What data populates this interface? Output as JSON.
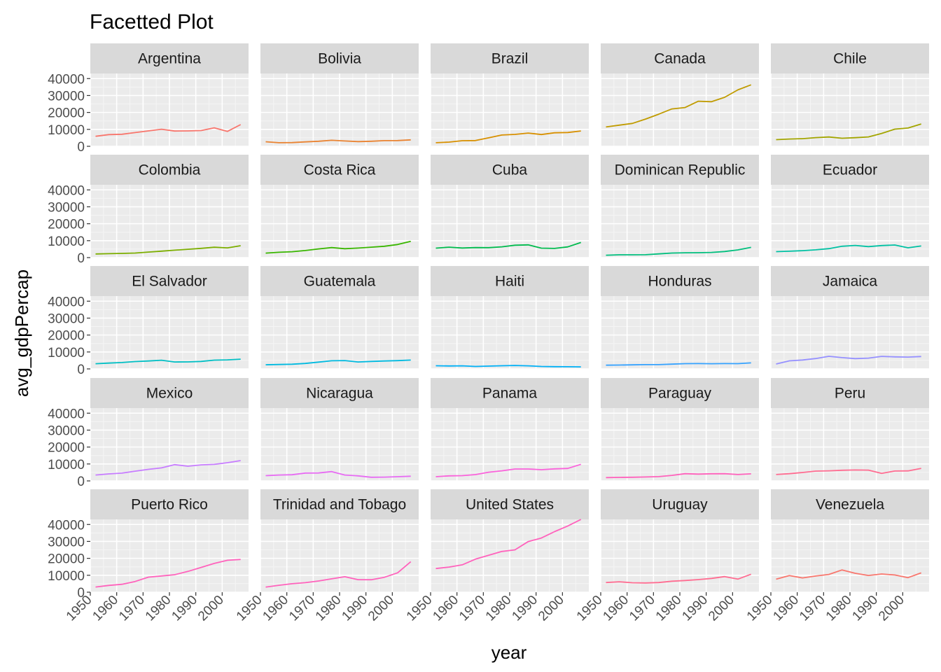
{
  "chart_data": {
    "type": "line",
    "title": "Facetted Plot",
    "xlabel": "year",
    "ylabel": "avg_gdpPercap",
    "xlim": [
      1950,
      2010
    ],
    "ylim": [
      0,
      43000
    ],
    "x_ticks": [
      1950,
      1960,
      1970,
      1980,
      1990,
      2000
    ],
    "y_ticks": [
      0,
      10000,
      20000,
      30000,
      40000
    ],
    "grid": true,
    "x": [
      1952,
      1957,
      1962,
      1967,
      1972,
      1977,
      1982,
      1987,
      1992,
      1997,
      2002,
      2007
    ],
    "series": [
      {
        "name": "Argentina",
        "color": "#F8766D",
        "values": [
          5900,
          6900,
          7100,
          8100,
          9100,
          10100,
          9000,
          9100,
          9300,
          10900,
          8800,
          12800
        ]
      },
      {
        "name": "Bolivia",
        "color": "#EA8331",
        "values": [
          2700,
          2100,
          2200,
          2600,
          2980,
          3550,
          3160,
          2750,
          2960,
          3330,
          3410,
          3820
        ]
      },
      {
        "name": "Brazil",
        "color": "#D89000",
        "values": [
          2100,
          2500,
          3300,
          3400,
          4990,
          6660,
          7030,
          7810,
          6950,
          7960,
          8130,
          9070
        ]
      },
      {
        "name": "Canada",
        "color": "#C09B00",
        "values": [
          11400,
          12500,
          13500,
          16100,
          18970,
          22090,
          22900,
          26630,
          26340,
          28950,
          33330,
          36320
        ]
      },
      {
        "name": "Chile",
        "color": "#A3A500",
        "values": [
          3940,
          4320,
          4520,
          5110,
          5490,
          4760,
          5100,
          5550,
          7600,
          10120,
          10780,
          13170
        ]
      },
      {
        "name": "Colombia",
        "color": "#7CAE00",
        "values": [
          2140,
          2320,
          2490,
          2680,
          3260,
          3820,
          4400,
          4900,
          5440,
          6120,
          5760,
          7010
        ]
      },
      {
        "name": "Costa Rica",
        "color": "#39B600",
        "values": [
          2630,
          3140,
          3460,
          4160,
          5120,
          5930,
          5260,
          5630,
          6160,
          6680,
          7720,
          9650
        ]
      },
      {
        "name": "Cuba",
        "color": "#00BB4E",
        "values": [
          5590,
          6180,
          5680,
          5910,
          5880,
          6380,
          7320,
          7530,
          5590,
          5430,
          6340,
          8950
        ]
      },
      {
        "name": "Dominican Republic",
        "color": "#00BF7D",
        "values": [
          1400,
          1660,
          1650,
          1710,
          2190,
          2680,
          2860,
          2880,
          3040,
          3610,
          4560,
          6030
        ]
      },
      {
        "name": "Ecuador",
        "color": "#00C1A3",
        "values": [
          3520,
          3780,
          4090,
          4580,
          5280,
          6680,
          7210,
          6480,
          7100,
          7430,
          5770,
          6870
        ]
      },
      {
        "name": "El Salvador",
        "color": "#00BFC4",
        "values": [
          3050,
          3420,
          3780,
          4360,
          4690,
          5140,
          4100,
          4140,
          4440,
          5150,
          5350,
          5730
        ]
      },
      {
        "name": "Guatemala",
        "color": "#00BAE0",
        "values": [
          2430,
          2620,
          2750,
          3240,
          4030,
          4800,
          4900,
          4090,
          4440,
          4690,
          4860,
          5190
        ]
      },
      {
        "name": "Haiti",
        "color": "#00B0F6",
        "values": [
          1840,
          1730,
          1800,
          1460,
          1650,
          1870,
          2010,
          1820,
          1460,
          1340,
          1270,
          1200
        ]
      },
      {
        "name": "Honduras",
        "color": "#35A2FF",
        "values": [
          2190,
          2290,
          2380,
          2540,
          2530,
          2820,
          3120,
          3160,
          3080,
          3160,
          3100,
          3550
        ]
      },
      {
        "name": "Jamaica",
        "color": "#9590FF",
        "values": [
          2900,
          4750,
          5250,
          6120,
          7430,
          6650,
          6070,
          6350,
          7400,
          7120,
          6990,
          7320
        ]
      },
      {
        "name": "Mexico",
        "color": "#C77CFF",
        "values": [
          3480,
          4130,
          4580,
          5750,
          6810,
          7670,
          9610,
          8690,
          9470,
          9770,
          10740,
          11980
        ]
      },
      {
        "name": "Nicaragua",
        "color": "#E76BF3",
        "values": [
          3110,
          3460,
          3630,
          4640,
          4690,
          5490,
          3470,
          2960,
          2170,
          2250,
          2470,
          2750
        ]
      },
      {
        "name": "Panama",
        "color": "#FA62DB",
        "values": [
          2480,
          2960,
          3120,
          3720,
          5140,
          5970,
          7010,
          7030,
          6620,
          7110,
          7360,
          9810
        ]
      },
      {
        "name": "Paraguay",
        "color": "#FF62BC",
        "values": [
          1950,
          2050,
          2150,
          2300,
          2520,
          3250,
          4260,
          3990,
          4200,
          4250,
          3780,
          4170
        ]
      },
      {
        "name": "Peru",
        "color": "#FF6C91",
        "values": [
          3760,
          4250,
          4960,
          5790,
          5940,
          6280,
          6430,
          6360,
          4450,
          5840,
          5910,
          7410
        ]
      },
      {
        "name": "Puerto Rico",
        "color": "#FF62BC",
        "values": [
          3080,
          4000,
          4680,
          6310,
          8900,
          9600,
          10330,
          12280,
          14640,
          16990,
          18860,
          19330
        ]
      },
      {
        "name": "Trinidad and Tobago",
        "color": "#FF62BC",
        "values": [
          3020,
          4100,
          4990,
          5620,
          6620,
          7900,
          9120,
          7390,
          7370,
          8790,
          11460,
          18010
        ]
      },
      {
        "name": "United States",
        "color": "#FF62BC",
        "values": [
          13990,
          14850,
          16170,
          19530,
          21810,
          24070,
          25010,
          29880,
          32000,
          35770,
          39100,
          42950
        ]
      },
      {
        "name": "Uruguay",
        "color": "#FF6C91",
        "values": [
          5720,
          6150,
          5600,
          5440,
          5700,
          6500,
          6920,
          7450,
          8140,
          9230,
          7730,
          10610
        ]
      },
      {
        "name": "Venezuela",
        "color": "#F8766D",
        "values": [
          7690,
          9800,
          8420,
          9540,
          10500,
          13140,
          11150,
          9880,
          10730,
          10170,
          8610,
          11420
        ]
      }
    ]
  }
}
